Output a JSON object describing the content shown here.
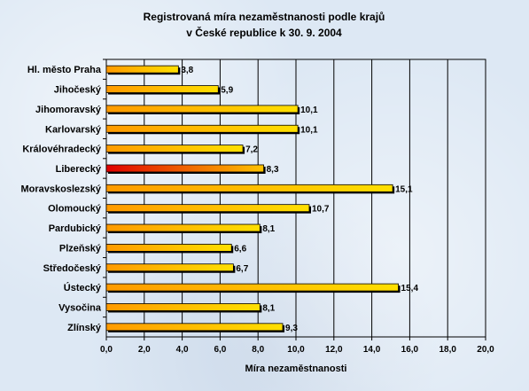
{
  "chart_data": {
    "type": "bar",
    "orientation": "horizontal",
    "title_lines": [
      "Registrovaná míra nezaměstnanosti podle krajů",
      "v České republice k 30. 9. 2004"
    ],
    "xlabel": "Míra nezaměstnanosti",
    "ylabel": "",
    "xlim": [
      0,
      20
    ],
    "x_ticks": [
      "0,0",
      "2,0",
      "4,0",
      "6,0",
      "8,0",
      "10,0",
      "12,0",
      "14,0",
      "16,0",
      "18,0",
      "20,0"
    ],
    "grid": "vertical",
    "categories": [
      "Hl. město Praha",
      "Jihočeský",
      "Jihomoravský",
      "Karlovarský",
      "Královéhradecký",
      "Liberecký",
      "Moravskoslezský",
      "Olomoucký",
      "Pardubický",
      "Plzeňský",
      "Středočeský",
      "Ústecký",
      "Vysočina",
      "Zlínský"
    ],
    "values": [
      3.8,
      5.9,
      10.1,
      10.1,
      7.2,
      8.3,
      15.1,
      10.7,
      8.1,
      6.6,
      6.7,
      15.4,
      8.1,
      9.3
    ],
    "value_labels": [
      "3,8",
      "5,9",
      "10,1",
      "10,1",
      "7,2",
      "8,3",
      "15,1",
      "10,7",
      "8,1",
      "6,6",
      "6,7",
      "15,4",
      "8,1",
      "9,3"
    ],
    "highlight_category": "Liberecký",
    "colors": {
      "bar_start": "#ff9a00",
      "bar_end": "#ffe000",
      "highlight_start": "#e00000",
      "highlight_end": "#ffc400",
      "bar_border": "#000000",
      "grid": "#000000",
      "plot_bg": "#dde8f4"
    }
  }
}
